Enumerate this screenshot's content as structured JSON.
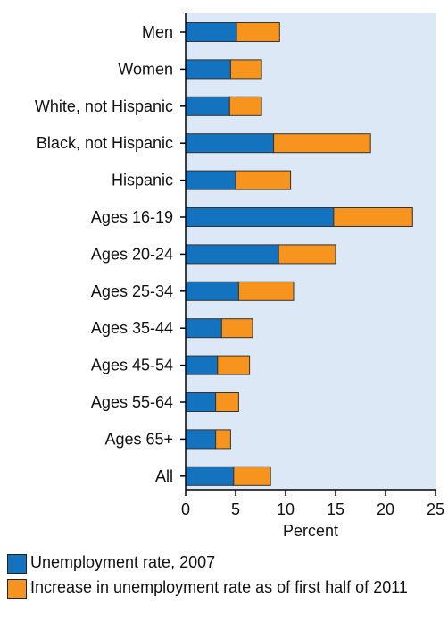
{
  "chart_data": {
    "type": "bar",
    "orientation": "horizontal",
    "stacked": true,
    "categories": [
      "Men",
      "Women",
      "White, not Hispanic",
      "Black, not Hispanic",
      "Hispanic",
      "Ages 16-19",
      "Ages 20-24",
      "Ages 25-34",
      "Ages 35-44",
      "Ages 45-54",
      "Ages 55-64",
      "Ages 65+",
      "All"
    ],
    "series": [
      {
        "name": "Unemployment rate, 2007",
        "color": "#1473bf",
        "values": [
          5.1,
          4.5,
          4.4,
          8.8,
          5.0,
          14.8,
          9.3,
          5.3,
          3.6,
          3.2,
          3.0,
          3.0,
          4.8
        ]
      },
      {
        "name": "Increase in unemployment rate as of first half of 2011",
        "color": "#f7941d",
        "values": [
          4.3,
          3.1,
          3.2,
          9.7,
          5.5,
          7.9,
          5.7,
          5.5,
          3.1,
          3.2,
          2.3,
          1.5,
          3.7
        ]
      }
    ],
    "xlabel": "Percent",
    "xlim": [
      0,
      25
    ],
    "xticks": [
      0,
      5,
      10,
      15,
      20,
      25
    ],
    "grid": false,
    "background": "#dde8f6",
    "legend": "bottom"
  }
}
